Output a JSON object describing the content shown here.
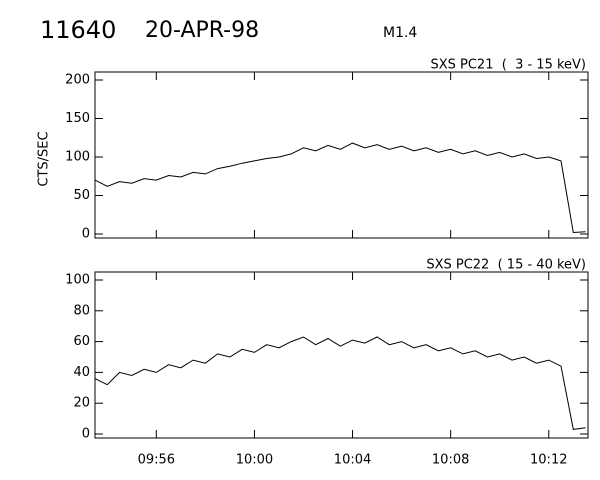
{
  "header": {
    "event": "11640",
    "date": "20-APR-98",
    "flare_class": "M1.4"
  },
  "chart_data": [
    {
      "type": "line",
      "title": "SXS PC21  (  3 - 15 keV)",
      "ylabel": "CTS/SEC",
      "color": "#000000",
      "x": [
        593.5,
        594,
        594.5,
        595,
        595.5,
        596,
        596.5,
        597,
        597.5,
        598,
        598.5,
        599,
        599.5,
        600,
        600.5,
        601,
        601.5,
        602,
        602.5,
        603,
        603.5,
        604,
        604.5,
        605,
        605.5,
        606,
        606.5,
        607,
        607.5,
        608,
        608.5,
        609,
        609.5,
        610,
        610.5,
        611,
        611.5,
        612,
        612.5,
        613,
        613.5
      ],
      "values": [
        70,
        62,
        68,
        66,
        72,
        70,
        76,
        74,
        80,
        78,
        85,
        88,
        92,
        95,
        98,
        100,
        104,
        112,
        108,
        115,
        110,
        118,
        112,
        116,
        110,
        114,
        108,
        112,
        106,
        110,
        104,
        108,
        102,
        106,
        100,
        104,
        98,
        100,
        95,
        2,
        3
      ],
      "xlim": [
        593.5,
        613.6
      ],
      "xticks": [
        596,
        600,
        604,
        608,
        612
      ],
      "ylim": [
        0,
        200
      ],
      "yticks": [
        0,
        50,
        100,
        150,
        200
      ]
    },
    {
      "type": "line",
      "title": "SXS PC22  ( 15 - 40 keV)",
      "color": "#000000",
      "x": [
        593.5,
        594,
        594.5,
        595,
        595.5,
        596,
        596.5,
        597,
        597.5,
        598,
        598.5,
        599,
        599.5,
        600,
        600.5,
        601,
        601.5,
        602,
        602.5,
        603,
        603.5,
        604,
        604.5,
        605,
        605.5,
        606,
        606.5,
        607,
        607.5,
        608,
        608.5,
        609,
        609.5,
        610,
        610.5,
        611,
        611.5,
        612,
        612.5,
        613,
        613.5
      ],
      "values": [
        36,
        32,
        40,
        38,
        42,
        40,
        45,
        43,
        48,
        46,
        52,
        50,
        55,
        53,
        58,
        56,
        60,
        63,
        58,
        62,
        57,
        61,
        59,
        63,
        58,
        60,
        56,
        58,
        54,
        56,
        52,
        54,
        50,
        52,
        48,
        50,
        46,
        48,
        44,
        3,
        4
      ],
      "xlim": [
        593.5,
        613.6
      ],
      "xticks": [
        {
          "value": 596,
          "label": "09:56"
        },
        {
          "value": 600,
          "label": "10:00"
        },
        {
          "value": 604,
          "label": "10:04"
        },
        {
          "value": 608,
          "label": "10:08"
        },
        {
          "value": 612,
          "label": "10:12"
        }
      ],
      "ylim": [
        0,
        100
      ],
      "yticks": [
        0,
        20,
        40,
        60,
        80,
        100
      ]
    }
  ]
}
